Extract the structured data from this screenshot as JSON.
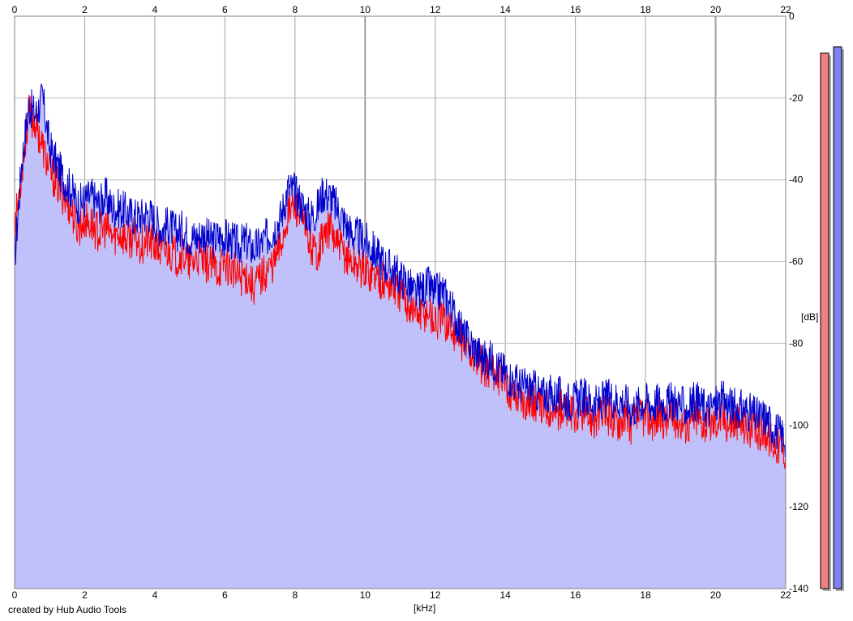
{
  "chart_data": {
    "type": "area",
    "title": "",
    "xlabel": "[kHz]",
    "ylabel": "[dB]",
    "xlim": [
      0,
      22
    ],
    "ylim": [
      -140,
      0
    ],
    "x_ticks": [
      0,
      2,
      4,
      6,
      8,
      10,
      12,
      14,
      16,
      18,
      20,
      22
    ],
    "y_ticks": [
      0,
      -20,
      -40,
      -60,
      -80,
      -100,
      -120,
      -140
    ],
    "grid": true,
    "background_fill_color": "#c0c0fa",
    "series": [
      {
        "color": "#ff0000",
        "x": [
          0,
          0.2,
          0.4,
          0.6,
          0.8,
          1.0,
          1.2,
          1.4,
          1.6,
          1.8,
          2.0,
          2.2,
          2.4,
          2.6,
          2.8,
          3.0,
          3.2,
          3.4,
          3.6,
          3.8,
          4.0,
          4.2,
          4.4,
          4.6,
          4.8,
          5.0,
          5.2,
          5.4,
          5.6,
          5.8,
          6.0,
          6.2,
          6.4,
          6.6,
          6.8,
          7.0,
          7.2,
          7.4,
          7.6,
          7.8,
          8.0,
          8.2,
          8.4,
          8.6,
          8.8,
          9.0,
          9.2,
          9.4,
          9.6,
          9.8,
          10.0,
          10.2,
          10.4,
          10.6,
          10.8,
          11.0,
          11.2,
          11.4,
          11.6,
          11.8,
          12.0,
          12.2,
          12.4,
          12.6,
          12.8,
          13.0,
          13.2,
          13.4,
          13.6,
          13.8,
          14.0,
          14.2,
          14.4,
          14.6,
          14.8,
          15.0,
          15.2,
          15.4,
          15.6,
          15.8,
          16.0,
          16.2,
          16.4,
          16.6,
          16.8,
          17.0,
          17.2,
          17.4,
          17.6,
          17.8,
          18.0,
          18.2,
          18.4,
          18.6,
          18.8,
          19.0,
          19.2,
          19.4,
          19.6,
          19.8,
          20.0,
          20.2,
          20.4,
          20.6,
          20.8,
          21.0,
          21.2,
          21.4,
          21.6,
          21.8,
          22.0
        ],
        "y": [
          -52,
          -38,
          -24,
          -26,
          -32,
          -38,
          -41,
          -44,
          -47,
          -52,
          -50,
          -51,
          -53,
          -52,
          -54,
          -53,
          -55,
          -54,
          -56,
          -55,
          -56,
          -58,
          -57,
          -59,
          -58,
          -61,
          -59,
          -60,
          -61,
          -62,
          -60,
          -62,
          -64,
          -63,
          -66,
          -64,
          -62,
          -60,
          -56,
          -48,
          -46,
          -50,
          -55,
          -58,
          -54,
          -52,
          -56,
          -58,
          -60,
          -61,
          -62,
          -63,
          -64,
          -65,
          -66,
          -68,
          -70,
          -72,
          -73,
          -72,
          -75,
          -74,
          -76,
          -78,
          -80,
          -82,
          -84,
          -86,
          -86,
          -88,
          -90,
          -92,
          -93,
          -94,
          -94,
          -96,
          -95,
          -97,
          -96,
          -97,
          -98,
          -97,
          -98,
          -99,
          -97,
          -98,
          -99,
          -98,
          -100,
          -98,
          -98,
          -99,
          -98,
          -99,
          -98,
          -99,
          -100,
          -98,
          -99,
          -100,
          -99,
          -98,
          -100,
          -99,
          -100,
          -101,
          -102,
          -101,
          -104,
          -105,
          -106
        ]
      },
      {
        "color": "#0000cc",
        "x": [
          0,
          0.2,
          0.4,
          0.6,
          0.8,
          1.0,
          1.2,
          1.4,
          1.6,
          1.8,
          2.0,
          2.2,
          2.4,
          2.6,
          2.8,
          3.0,
          3.2,
          3.4,
          3.6,
          3.8,
          4.0,
          4.2,
          4.4,
          4.6,
          4.8,
          5.0,
          5.2,
          5.4,
          5.6,
          5.8,
          6.0,
          6.2,
          6.4,
          6.6,
          6.8,
          7.0,
          7.2,
          7.4,
          7.6,
          7.8,
          8.0,
          8.2,
          8.4,
          8.6,
          8.8,
          9.0,
          9.2,
          9.4,
          9.6,
          9.8,
          10.0,
          10.2,
          10.4,
          10.6,
          10.8,
          11.0,
          11.2,
          11.4,
          11.6,
          11.8,
          12.0,
          12.2,
          12.4,
          12.6,
          12.8,
          13.0,
          13.2,
          13.4,
          13.6,
          13.8,
          14.0,
          14.2,
          14.4,
          14.6,
          14.8,
          15.0,
          15.2,
          15.4,
          15.6,
          15.8,
          16.0,
          16.2,
          16.4,
          16.6,
          16.8,
          17.0,
          17.2,
          17.4,
          17.6,
          17.8,
          18.0,
          18.2,
          18.4,
          18.6,
          18.8,
          19.0,
          19.2,
          19.4,
          19.6,
          19.8,
          20.0,
          20.2,
          20.4,
          20.6,
          20.8,
          21.0,
          21.2,
          21.4,
          21.6,
          21.8,
          22.0
        ],
        "y": [
          -60,
          -36,
          -22,
          -24,
          -20,
          -32,
          -36,
          -40,
          -42,
          -46,
          -45,
          -44,
          -46,
          -44,
          -47,
          -47,
          -48,
          -49,
          -49,
          -48,
          -50,
          -52,
          -51,
          -53,
          -52,
          -54,
          -54,
          -53,
          -55,
          -54,
          -54,
          -55,
          -56,
          -55,
          -57,
          -56,
          -54,
          -52,
          -49,
          -42,
          -43,
          -46,
          -49,
          -48,
          -43,
          -44,
          -47,
          -50,
          -53,
          -54,
          -55,
          -57,
          -59,
          -61,
          -62,
          -64,
          -65,
          -68,
          -67,
          -66,
          -68,
          -67,
          -70,
          -74,
          -78,
          -80,
          -82,
          -84,
          -84,
          -86,
          -87,
          -89,
          -90,
          -91,
          -91,
          -93,
          -92,
          -93,
          -93,
          -94,
          -94,
          -93,
          -94,
          -95,
          -94,
          -93,
          -94,
          -94,
          -96,
          -95,
          -94,
          -95,
          -94,
          -95,
          -94,
          -95,
          -96,
          -94,
          -95,
          -96,
          -95,
          -94,
          -95,
          -96,
          -96,
          -97,
          -98,
          -98,
          -100,
          -102,
          -103
        ]
      }
    ],
    "level_meters": [
      {
        "color": "#f08080",
        "level_db": -9
      },
      {
        "color": "#8080f0",
        "level_db": -7.5
      }
    ]
  },
  "footer": {
    "credit": "created by Hub Audio Tools"
  }
}
